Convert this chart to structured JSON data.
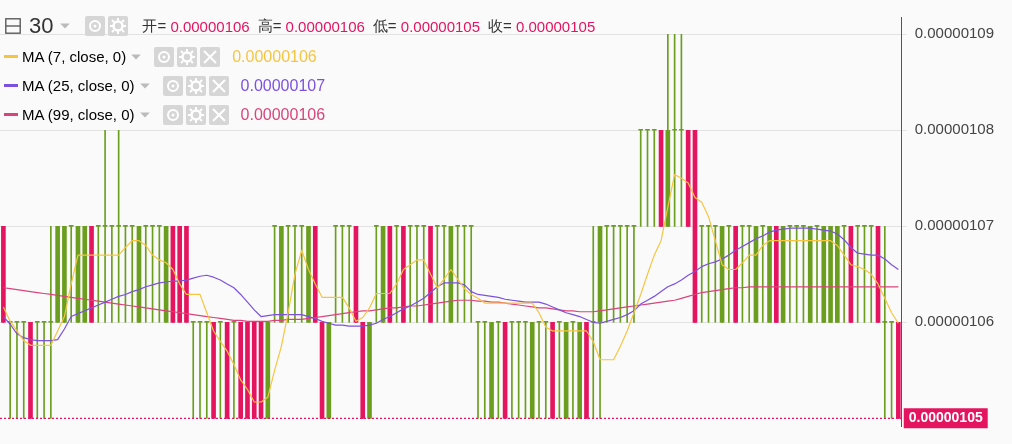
{
  "chart_data": {
    "type": "candlestick",
    "title": "30",
    "categories": [
      null,
      null,
      null,
      null,
      null,
      null,
      null,
      null,
      null,
      null,
      null,
      null,
      null,
      null,
      null,
      null,
      null,
      null,
      null,
      null,
      null,
      null,
      null,
      null,
      null,
      null,
      null,
      null,
      null,
      null,
      null,
      null,
      null,
      null,
      null,
      null,
      null,
      null,
      null,
      null,
      null,
      null,
      null,
      null,
      null,
      null,
      null,
      null,
      null,
      null,
      null,
      null,
      null,
      null,
      null,
      null,
      null,
      null,
      null,
      null,
      null,
      null,
      null,
      null,
      null,
      null,
      null,
      null,
      null,
      null,
      null,
      null,
      null,
      null,
      null,
      null,
      null,
      null,
      null,
      null,
      null,
      null,
      null,
      null,
      null,
      null,
      null,
      null,
      null,
      null,
      null,
      null,
      null,
      null,
      null,
      null,
      null,
      null,
      null,
      null,
      null,
      null,
      null,
      null,
      null,
      null,
      null,
      null,
      null,
      null,
      null,
      null,
      null,
      null,
      null,
      null,
      null,
      null,
      null,
      null,
      null,
      null,
      null,
      null,
      null,
      null,
      null,
      null,
      null,
      null,
      null,
      null,
      null
    ],
    "ohlc": [
      [
        1.07e-06,
        1.07e-06,
        1.06e-06,
        1.06e-06
      ],
      [
        1.06e-06,
        1.06e-06,
        1.05e-06,
        1.06e-06
      ],
      [
        1.06e-06,
        1.06e-06,
        1.05e-06,
        1.06e-06
      ],
      [
        1.06e-06,
        1.06e-06,
        1.05e-06,
        1.06e-06
      ],
      [
        1.06e-06,
        1.06e-06,
        1.05e-06,
        1.05e-06
      ],
      [
        1.06e-06,
        1.06e-06,
        1.05e-06,
        1.06e-06
      ],
      [
        1.06e-06,
        1.06e-06,
        1.05e-06,
        1.06e-06
      ],
      [
        1.06e-06,
        1.07e-06,
        1.05e-06,
        1.06e-06
      ],
      [
        1.06e-06,
        1.07e-06,
        1.06e-06,
        1.07e-06
      ],
      [
        1.06e-06,
        1.07e-06,
        1.06e-06,
        1.07e-06
      ],
      [
        1.07e-06,
        1.07e-06,
        1.06e-06,
        1.07e-06
      ],
      [
        1.06e-06,
        1.07e-06,
        1.06e-06,
        1.07e-06
      ],
      [
        1.06e-06,
        1.07e-06,
        1.06e-06,
        1.07e-06
      ],
      [
        1.07e-06,
        1.07e-06,
        1.06e-06,
        1.06e-06
      ],
      [
        1.07e-06,
        1.07e-06,
        1.06e-06,
        1.07e-06
      ],
      [
        1.07e-06,
        1.08e-06,
        1.06e-06,
        1.07e-06
      ],
      [
        1.07e-06,
        1.07e-06,
        1.06e-06,
        1.07e-06
      ],
      [
        1.07e-06,
        1.08e-06,
        1.06e-06,
        1.07e-06
      ],
      [
        1.07e-06,
        1.07e-06,
        1.06e-06,
        1.07e-06
      ],
      [
        1.07e-06,
        1.07e-06,
        1.06e-06,
        1.07e-06
      ],
      [
        1.06e-06,
        1.07e-06,
        1.06e-06,
        1.07e-06
      ],
      [
        1.07e-06,
        1.07e-06,
        1.06e-06,
        1.07e-06
      ],
      [
        1.07e-06,
        1.07e-06,
        1.06e-06,
        1.07e-06
      ],
      [
        1.07e-06,
        1.07e-06,
        1.06e-06,
        1.07e-06
      ],
      [
        1.06e-06,
        1.07e-06,
        1.06e-06,
        1.07e-06
      ],
      [
        1.07e-06,
        1.07e-06,
        1.06e-06,
        1.06e-06
      ],
      [
        1.07e-06,
        1.07e-06,
        1.06e-06,
        1.06e-06
      ],
      [
        1.07e-06,
        1.07e-06,
        1.06e-06,
        1.06e-06
      ],
      [
        1.06e-06,
        1.06e-06,
        1.05e-06,
        1.06e-06
      ],
      [
        1.06e-06,
        1.06e-06,
        1.05e-06,
        1.06e-06
      ],
      [
        1.06e-06,
        1.06e-06,
        1.05e-06,
        1.06e-06
      ],
      [
        1.06e-06,
        1.06e-06,
        1.05e-06,
        1.05e-06
      ],
      [
        1.06e-06,
        1.06e-06,
        1.05e-06,
        1.06e-06
      ],
      [
        1.06e-06,
        1.06e-06,
        1.05e-06,
        1.05e-06
      ],
      [
        1.06e-06,
        1.06e-06,
        1.05e-06,
        1.06e-06
      ],
      [
        1.06e-06,
        1.06e-06,
        1.05e-06,
        1.05e-06
      ],
      [
        1.06e-06,
        1.06e-06,
        1.05e-06,
        1.05e-06
      ],
      [
        1.06e-06,
        1.06e-06,
        1.05e-06,
        1.05e-06
      ],
      [
        1.06e-06,
        1.06e-06,
        1.05e-06,
        1.05e-06
      ],
      [
        1.05e-06,
        1.06e-06,
        1.05e-06,
        1.06e-06
      ],
      [
        1.07e-06,
        1.07e-06,
        1.06e-06,
        1.07e-06
      ],
      [
        1.06e-06,
        1.07e-06,
        1.06e-06,
        1.07e-06
      ],
      [
        1.07e-06,
        1.07e-06,
        1.06e-06,
        1.07e-06
      ],
      [
        1.07e-06,
        1.07e-06,
        1.06e-06,
        1.07e-06
      ],
      [
        1.07e-06,
        1.07e-06,
        1.06e-06,
        1.07e-06
      ],
      [
        1.06e-06,
        1.07e-06,
        1.06e-06,
        1.07e-06
      ],
      [
        1.07e-06,
        1.07e-06,
        1.06e-06,
        1.06e-06
      ],
      [
        1.06e-06,
        1.06e-06,
        1.05e-06,
        1.05e-06
      ],
      [
        1.05e-06,
        1.06e-06,
        1.05e-06,
        1.06e-06
      ],
      [
        1.07e-06,
        1.07e-06,
        1.06e-06,
        1.07e-06
      ],
      [
        1.07e-06,
        1.07e-06,
        1.06e-06,
        1.07e-06
      ],
      [
        1.07e-06,
        1.07e-06,
        1.06e-06,
        1.07e-06
      ],
      [
        1.07e-06,
        1.07e-06,
        1.06e-06,
        1.06e-06
      ],
      [
        1.06e-06,
        1.06e-06,
        1.05e-06,
        1.05e-06
      ],
      [
        1.05e-06,
        1.06e-06,
        1.05e-06,
        1.06e-06
      ],
      [
        1.07e-06,
        1.07e-06,
        1.06e-06,
        1.07e-06
      ],
      [
        1.06e-06,
        1.07e-06,
        1.06e-06,
        1.07e-06
      ],
      [
        1.07e-06,
        1.07e-06,
        1.06e-06,
        1.06e-06
      ],
      [
        1.07e-06,
        1.07e-06,
        1.06e-06,
        1.07e-06
      ],
      [
        1.07e-06,
        1.07e-06,
        1.06e-06,
        1.06e-06
      ],
      [
        1.07e-06,
        1.07e-06,
        1.06e-06,
        1.07e-06
      ],
      [
        1.07e-06,
        1.07e-06,
        1.06e-06,
        1.07e-06
      ],
      [
        1.07e-06,
        1.07e-06,
        1.06e-06,
        1.07e-06
      ],
      [
        1.07e-06,
        1.07e-06,
        1.06e-06,
        1.06e-06
      ],
      [
        1.07e-06,
        1.07e-06,
        1.06e-06,
        1.07e-06
      ],
      [
        1.07e-06,
        1.07e-06,
        1.06e-06,
        1.07e-06
      ],
      [
        1.06e-06,
        1.07e-06,
        1.06e-06,
        1.07e-06
      ],
      [
        1.07e-06,
        1.07e-06,
        1.06e-06,
        1.07e-06
      ],
      [
        1.07e-06,
        1.07e-06,
        1.06e-06,
        1.07e-06
      ],
      [
        1.07e-06,
        1.07e-06,
        1.06e-06,
        1.07e-06
      ],
      [
        1.06e-06,
        1.06e-06,
        1.05e-06,
        1.06e-06
      ],
      [
        1.06e-06,
        1.06e-06,
        1.05e-06,
        1.06e-06
      ],
      [
        1.05e-06,
        1.06e-06,
        1.05e-06,
        1.06e-06
      ],
      [
        1.06e-06,
        1.06e-06,
        1.05e-06,
        1.06e-06
      ],
      [
        1.06e-06,
        1.06e-06,
        1.05e-06,
        1.05e-06
      ],
      [
        1.06e-06,
        1.06e-06,
        1.05e-06,
        1.06e-06
      ],
      [
        1.06e-06,
        1.06e-06,
        1.05e-06,
        1.06e-06
      ],
      [
        1.06e-06,
        1.06e-06,
        1.05e-06,
        1.06e-06
      ],
      [
        1.05e-06,
        1.06e-06,
        1.05e-06,
        1.06e-06
      ],
      [
        1.06e-06,
        1.06e-06,
        1.05e-06,
        1.06e-06
      ],
      [
        1.06e-06,
        1.06e-06,
        1.05e-06,
        1.06e-06
      ],
      [
        1.06e-06,
        1.06e-06,
        1.05e-06,
        1.05e-06
      ],
      [
        1.06e-06,
        1.06e-06,
        1.05e-06,
        1.06e-06
      ],
      [
        1.05e-06,
        1.06e-06,
        1.05e-06,
        1.06e-06
      ],
      [
        1.06e-06,
        1.06e-06,
        1.05e-06,
        1.06e-06
      ],
      [
        1.05e-06,
        1.06e-06,
        1.05e-06,
        1.06e-06
      ],
      [
        1.06e-06,
        1.06e-06,
        1.05e-06,
        1.05e-06
      ],
      [
        1.06e-06,
        1.07e-06,
        1.05e-06,
        1.06e-06
      ],
      [
        1.06e-06,
        1.07e-06,
        1.05e-06,
        1.07e-06
      ],
      [
        1.07e-06,
        1.07e-06,
        1.06e-06,
        1.07e-06
      ],
      [
        1.07e-06,
        1.07e-06,
        1.06e-06,
        1.07e-06
      ],
      [
        1.07e-06,
        1.07e-06,
        1.06e-06,
        1.07e-06
      ],
      [
        1.07e-06,
        1.07e-06,
        1.06e-06,
        1.07e-06
      ],
      [
        1.07e-06,
        1.07e-06,
        1.06e-06,
        1.07e-06
      ],
      [
        1.08e-06,
        1.08e-06,
        1.07e-06,
        1.08e-06
      ],
      [
        1.08e-06,
        1.08e-06,
        1.07e-06,
        1.08e-06
      ],
      [
        1.08e-06,
        1.08e-06,
        1.07e-06,
        1.08e-06
      ],
      [
        1.08e-06,
        1.08e-06,
        1.07e-06,
        1.07e-06
      ],
      [
        1.07e-06,
        1.09e-06,
        1.07e-06,
        1.08e-06
      ],
      [
        1.08e-06,
        1.09e-06,
        1.07e-06,
        1.08e-06
      ],
      [
        1.08e-06,
        1.09e-06,
        1.07e-06,
        1.08e-06
      ],
      [
        1.08e-06,
        1.08e-06,
        1.07e-06,
        1.07e-06
      ],
      [
        1.08e-06,
        1.08e-06,
        1.06e-06,
        1.06e-06
      ],
      [
        1.07e-06,
        1.07e-06,
        1.06e-06,
        1.07e-06
      ],
      [
        1.07e-06,
        1.07e-06,
        1.06e-06,
        1.07e-06
      ],
      [
        1.07e-06,
        1.07e-06,
        1.06e-06,
        1.07e-06
      ],
      [
        1.06e-06,
        1.07e-06,
        1.06e-06,
        1.07e-06
      ],
      [
        1.07e-06,
        1.07e-06,
        1.06e-06,
        1.07e-06
      ],
      [
        1.07e-06,
        1.07e-06,
        1.06e-06,
        1.06e-06
      ],
      [
        1.07e-06,
        1.07e-06,
        1.06e-06,
        1.07e-06
      ],
      [
        1.07e-06,
        1.07e-06,
        1.06e-06,
        1.07e-06
      ],
      [
        1.06e-06,
        1.07e-06,
        1.06e-06,
        1.07e-06
      ],
      [
        1.07e-06,
        1.07e-06,
        1.06e-06,
        1.07e-06
      ],
      [
        1.06e-06,
        1.07e-06,
        1.06e-06,
        1.07e-06
      ],
      [
        1.07e-06,
        1.07e-06,
        1.06e-06,
        1.06e-06
      ],
      [
        1.06e-06,
        1.07e-06,
        1.06e-06,
        1.07e-06
      ],
      [
        1.07e-06,
        1.07e-06,
        1.06e-06,
        1.07e-06
      ],
      [
        1.07e-06,
        1.07e-06,
        1.06e-06,
        1.07e-06
      ],
      [
        1.07e-06,
        1.07e-06,
        1.06e-06,
        1.07e-06
      ],
      [
        1.06e-06,
        1.07e-06,
        1.06e-06,
        1.07e-06
      ],
      [
        1.07e-06,
        1.07e-06,
        1.06e-06,
        1.07e-06
      ],
      [
        1.06e-06,
        1.07e-06,
        1.06e-06,
        1.07e-06
      ],
      [
        1.06e-06,
        1.07e-06,
        1.06e-06,
        1.07e-06
      ],
      [
        1.06e-06,
        1.07e-06,
        1.06e-06,
        1.07e-06
      ],
      [
        1.07e-06,
        1.07e-06,
        1.06e-06,
        1.07e-06
      ],
      [
        1.07e-06,
        1.07e-06,
        1.06e-06,
        1.06e-06
      ],
      [
        1.07e-06,
        1.07e-06,
        1.06e-06,
        1.07e-06
      ],
      [
        1.07e-06,
        1.07e-06,
        1.06e-06,
        1.07e-06
      ],
      [
        1.07e-06,
        1.07e-06,
        1.06e-06,
        1.07e-06
      ],
      [
        1.07e-06,
        1.07e-06,
        1.06e-06,
        1.06e-06
      ],
      [
        1.06e-06,
        1.07e-06,
        1.05e-06,
        1.06e-06
      ],
      [
        1.06e-06,
        1.06e-06,
        1.05e-06,
        1.06e-06
      ],
      [
        1.06e-06,
        1.06e-06,
        1.05e-06,
        1.05e-06
      ]
    ],
    "colors": [
      "#e4145f",
      "#6b9e1f",
      "#6b9e1f",
      "#6b9e1f",
      "#e4145f",
      "#6b9e1f",
      "#6b9e1f",
      "#6b9e1f",
      "#6b9e1f",
      "#6b9e1f",
      "#6b9e1f",
      "#6b9e1f",
      "#6b9e1f",
      "#e4145f",
      "#6b9e1f",
      "#6b9e1f",
      "#6b9e1f",
      "#6b9e1f",
      "#6b9e1f",
      "#6b9e1f",
      "#6b9e1f",
      "#6b9e1f",
      "#6b9e1f",
      "#6b9e1f",
      "#6b9e1f",
      "#e4145f",
      "#e4145f",
      "#e4145f",
      "#6b9e1f",
      "#6b9e1f",
      "#6b9e1f",
      "#e4145f",
      "#6b9e1f",
      "#e4145f",
      "#6b9e1f",
      "#e4145f",
      "#e4145f",
      "#e4145f",
      "#e4145f",
      "#6b9e1f",
      "#6b9e1f",
      "#6b9e1f",
      "#6b9e1f",
      "#6b9e1f",
      "#6b9e1f",
      "#6b9e1f",
      "#e4145f",
      "#e4145f",
      "#6b9e1f",
      "#6b9e1f",
      "#6b9e1f",
      "#6b9e1f",
      "#e4145f",
      "#e4145f",
      "#6b9e1f",
      "#6b9e1f",
      "#6b9e1f",
      "#e4145f",
      "#6b9e1f",
      "#e4145f",
      "#6b9e1f",
      "#6b9e1f",
      "#6b9e1f",
      "#e4145f",
      "#6b9e1f",
      "#6b9e1f",
      "#6b9e1f",
      "#6b9e1f",
      "#6b9e1f",
      "#6b9e1f",
      "#6b9e1f",
      "#6b9e1f",
      "#6b9e1f",
      "#6b9e1f",
      "#e4145f",
      "#6b9e1f",
      "#6b9e1f",
      "#6b9e1f",
      "#6b9e1f",
      "#6b9e1f",
      "#6b9e1f",
      "#e4145f",
      "#6b9e1f",
      "#6b9e1f",
      "#6b9e1f",
      "#6b9e1f",
      "#e4145f",
      "#6b9e1f",
      "#6b9e1f",
      "#6b9e1f",
      "#6b9e1f",
      "#6b9e1f",
      "#6b9e1f",
      "#6b9e1f",
      "#6b9e1f",
      "#6b9e1f",
      "#6b9e1f",
      "#e4145f",
      "#6b9e1f",
      "#6b9e1f",
      "#6b9e1f",
      "#e4145f",
      "#e4145f",
      "#6b9e1f",
      "#6b9e1f",
      "#6b9e1f",
      "#6b9e1f",
      "#6b9e1f",
      "#e4145f",
      "#6b9e1f",
      "#6b9e1f",
      "#6b9e1f",
      "#6b9e1f",
      "#6b9e1f",
      "#e4145f",
      "#6b9e1f",
      "#6b9e1f",
      "#6b9e1f",
      "#6b9e1f",
      "#6b9e1f",
      "#6b9e1f",
      "#6b9e1f",
      "#6b9e1f",
      "#6b9e1f",
      "#6b9e1f",
      "#e4145f",
      "#6b9e1f",
      "#6b9e1f",
      "#6b9e1f",
      "#e4145f",
      "#6b9e1f",
      "#6b9e1f",
      "#e4145f"
    ],
    "series": [
      {
        "name": "MA (7, close, 0)",
        "type": "line",
        "color": "#f5c542",
        "values": [
          1.0616e-06,
          1.0601e-06,
          1.0591e-06,
          1.0581e-06,
          1.0576e-06,
          1.0576e-06,
          1.0576e-06,
          1.0576e-06,
          1.0591e-06,
          1.0606e-06,
          1.064e-06,
          1.067e-06,
          1.067e-06,
          1.067e-06,
          1.067e-06,
          1.067e-06,
          1.067e-06,
          1.067e-06,
          1.0678e-06,
          1.0685e-06,
          1.0685e-06,
          1.068e-06,
          1.067e-06,
          1.0665e-06,
          1.0662e-06,
          1.0655e-06,
          1.064e-06,
          1.0629e-06,
          1.0629e-06,
          1.0629e-06,
          1.061e-06,
          1.0591e-06,
          1.058e-06,
          1.057e-06,
          1.0556e-06,
          1.054e-06,
          1.053e-06,
          1.0517e-06,
          1.0517e-06,
          1.0522e-06,
          1.055e-06,
          1.0575e-06,
          1.061e-06,
          1.065e-06,
          1.0675e-06,
          1.0655e-06,
          1.064e-06,
          1.0626e-06,
          1.0626e-06,
          1.0626e-06,
          1.0626e-06,
          1.0615e-06,
          1.0601e-06,
          1.0605e-06,
          1.0615e-06,
          1.063e-06,
          1.063e-06,
          1.063e-06,
          1.064e-06,
          1.0655e-06,
          1.066e-06,
          1.0665e-06,
          1.0665e-06,
          1.065e-06,
          1.0636e-06,
          1.0645e-06,
          1.0655e-06,
          1.0645e-06,
          1.0635e-06,
          1.0629e-06,
          1.0625e-06,
          1.062e-06,
          1.062e-06,
          1.062e-06,
          1.062e-06,
          1.062e-06,
          1.062e-06,
          1.062e-06,
          1.062e-06,
          1.061e-06,
          1.0595e-06,
          1.0591e-06,
          1.0591e-06,
          1.0591e-06,
          1.0591e-06,
          1.0591e-06,
          1.0591e-06,
          1.058e-06,
          1.0561e-06,
          1.0561e-06,
          1.0561e-06,
          1.0575e-06,
          1.0591e-06,
          1.061e-06,
          1.0629e-06,
          1.065e-06,
          1.067e-06,
          1.0685e-06,
          1.072e-06,
          1.0754e-06,
          1.075e-06,
          1.0745e-06,
          1.073e-06,
          1.0725e-06,
          1.071e-06,
          1.0685e-06,
          1.066e-06,
          1.0655e-06,
          1.0655e-06,
          1.0662e-06,
          1.067e-06,
          1.067e-06,
          1.068e-06,
          1.0685e-06,
          1.0685e-06,
          1.0685e-06,
          1.0685e-06,
          1.0685e-06,
          1.0685e-06,
          1.0685e-06,
          1.0685e-06,
          1.0685e-06,
          1.0685e-06,
          1.068e-06,
          1.067e-06,
          1.066e-06,
          1.0658e-06,
          1.0655e-06,
          1.065e-06,
          1.064e-06,
          1.0625e-06,
          1.061e-06,
          1.0599e-06
        ]
      },
      {
        "name": "MA (25, close, 0)",
        "type": "line",
        "color": "#7b52e0",
        "values": [
          1.0606e-06,
          1.0598e-06,
          1.0588e-06,
          1.0584e-06,
          1.0582e-06,
          1.0581e-06,
          1.0581e-06,
          1.0581e-06,
          1.0582e-06,
          1.0593e-06,
          1.0606e-06,
          1.0609e-06,
          1.0612e-06,
          1.0615e-06,
          1.0618e-06,
          1.0621e-06,
          1.0624e-06,
          1.0627e-06,
          1.0629e-06,
          1.0632e-06,
          1.0634e-06,
          1.0637e-06,
          1.0639e-06,
          1.0641e-06,
          1.0642e-06,
          1.0643e-06,
          1.0643e-06,
          1.0644e-06,
          1.0646e-06,
          1.0648e-06,
          1.0649e-06,
          1.0647e-06,
          1.0644e-06,
          1.064e-06,
          1.0636e-06,
          1.0629e-06,
          1.0621e-06,
          1.0613e-06,
          1.0606e-06,
          1.0607e-06,
          1.0608e-06,
          1.0608e-06,
          1.0608e-06,
          1.0608e-06,
          1.0608e-06,
          1.0606e-06,
          1.0604e-06,
          1.0601e-06,
          1.0599e-06,
          1.0597e-06,
          1.0597e-06,
          1.0596e-06,
          1.0596e-06,
          1.0596e-06,
          1.0597e-06,
          1.0599e-06,
          1.0603e-06,
          1.0606e-06,
          1.061e-06,
          1.0614e-06,
          1.0617e-06,
          1.0621e-06,
          1.0625e-06,
          1.0631e-06,
          1.0637e-06,
          1.0641e-06,
          1.0641e-06,
          1.0641e-06,
          1.0639e-06,
          1.0632e-06,
          1.0629e-06,
          1.0628e-06,
          1.0627e-06,
          1.0626e-06,
          1.0624e-06,
          1.0623e-06,
          1.0622e-06,
          1.0621e-06,
          1.0621e-06,
          1.0621e-06,
          1.0619e-06,
          1.0616e-06,
          1.0613e-06,
          1.061e-06,
          1.0608e-06,
          1.0606e-06,
          1.0603e-06,
          1.06e-06,
          1.0599e-06,
          1.0601e-06,
          1.0603e-06,
          1.0605e-06,
          1.0608e-06,
          1.0612e-06,
          1.0619e-06,
          1.0623e-06,
          1.0627e-06,
          1.0632e-06,
          1.0637e-06,
          1.064e-06,
          1.0644e-06,
          1.0649e-06,
          1.0653e-06,
          1.0658e-06,
          1.0661e-06,
          1.0663e-06,
          1.0666e-06,
          1.067e-06,
          1.0675e-06,
          1.0679e-06,
          1.0683e-06,
          1.0687e-06,
          1.069e-06,
          1.0694e-06,
          1.0696e-06,
          1.0697e-06,
          1.0698e-06,
          1.0698e-06,
          1.0698e-06,
          1.0698e-06,
          1.0697e-06,
          1.0696e-06,
          1.0695e-06,
          1.0692e-06,
          1.0686e-06,
          1.0678e-06,
          1.0672e-06,
          1.0671e-06,
          1.067e-06,
          1.067e-06,
          1.0666e-06,
          1.066e-06,
          1.0655e-06
        ]
      },
      {
        "name": "MA (99, close, 0)",
        "type": "line",
        "color": "#d9457a",
        "values": [
          1.0636e-06,
          1.0635e-06,
          1.0634e-06,
          1.0633e-06,
          1.0632e-06,
          1.0631e-06,
          1.063e-06,
          1.0629e-06,
          1.0628e-06,
          1.0627e-06,
          1.0626e-06,
          1.0625e-06,
          1.0624e-06,
          1.0623e-06,
          1.0622e-06,
          1.0621e-06,
          1.062e-06,
          1.0619e-06,
          1.0618e-06,
          1.0617e-06,
          1.0616e-06,
          1.0615e-06,
          1.0614e-06,
          1.0613e-06,
          1.0612e-06,
          1.0611e-06,
          1.061e-06,
          1.0609e-06,
          1.0608e-06,
          1.0607e-06,
          1.0606e-06,
          1.0605e-06,
          1.0604e-06,
          1.0603e-06,
          1.0602e-06,
          1.0602e-06,
          1.0601e-06,
          1.0601e-06,
          1.0601e-06,
          1.0601e-06,
          1.0602e-06,
          1.0602e-06,
          1.0603e-06,
          1.0603e-06,
          1.0603e-06,
          1.0604e-06,
          1.0605e-06,
          1.0606e-06,
          1.0607e-06,
          1.0608e-06,
          1.0609e-06,
          1.061e-06,
          1.0611e-06,
          1.0612e-06,
          1.0612e-06,
          1.0613e-06,
          1.0614e-06,
          1.0615e-06,
          1.0615e-06,
          1.0616e-06,
          1.0617e-06,
          1.0617e-06,
          1.0618e-06,
          1.0619e-06,
          1.062e-06,
          1.0621e-06,
          1.0622e-06,
          1.0623e-06,
          1.0623e-06,
          1.0623e-06,
          1.0622e-06,
          1.0622e-06,
          1.0621e-06,
          1.0621e-06,
          1.062e-06,
          1.0619e-06,
          1.0618e-06,
          1.0617e-06,
          1.0616e-06,
          1.0615e-06,
          1.0615e-06,
          1.0614e-06,
          1.0613e-06,
          1.0612e-06,
          1.0612e-06,
          1.0611e-06,
          1.0611e-06,
          1.0611e-06,
          1.0612e-06,
          1.0613e-06,
          1.0614e-06,
          1.0615e-06,
          1.0616e-06,
          1.0617e-06,
          1.0618e-06,
          1.0619e-06,
          1.062e-06,
          1.0621e-06,
          1.0622e-06,
          1.0623e-06,
          1.0625e-06,
          1.0627e-06,
          1.0629e-06,
          1.0631e-06,
          1.0632e-06,
          1.0633e-06,
          1.0634e-06,
          1.0635e-06,
          1.0636e-06,
          1.0636e-06,
          1.0637e-06,
          1.0637e-06,
          1.0637e-06,
          1.0637e-06,
          1.0637e-06,
          1.0637e-06,
          1.0637e-06,
          1.0637e-06,
          1.0637e-06,
          1.0637e-06,
          1.0637e-06,
          1.0637e-06,
          1.0637e-06,
          1.0637e-06,
          1.0637e-06,
          1.0637e-06,
          1.0637e-06,
          1.0637e-06,
          1.0637e-06,
          1.0637e-06,
          1.0637e-06,
          1.0637e-06,
          1.0637e-06
        ]
      }
    ],
    "ylim": [
      1.0492e-06,
      1.0918e-06
    ],
    "yticks": [
      {
        "value": 1.06e-06,
        "label": "0.00000106"
      },
      {
        "value": 1.07e-06,
        "label": "0.00000107"
      },
      {
        "value": 1.08e-06,
        "label": "0.00000108"
      },
      {
        "value": 1.09e-06,
        "label": "0.00000109"
      }
    ],
    "ref_lines": [
      {
        "axis": "y",
        "value": 1.05e-06,
        "label": "0.00000105",
        "color": "#e4145f",
        "line_style": "dotted"
      }
    ],
    "annotations": [
      "开= 0.00000106",
      "高= 0.00000106",
      "低= 0.00000105",
      "收= 0.00000105",
      "0.00000106",
      "0.00000107",
      "0.00000106"
    ],
    "grid": "y",
    "legend": "top left",
    "tick_labels": "y",
    "marker": "none"
  }
}
